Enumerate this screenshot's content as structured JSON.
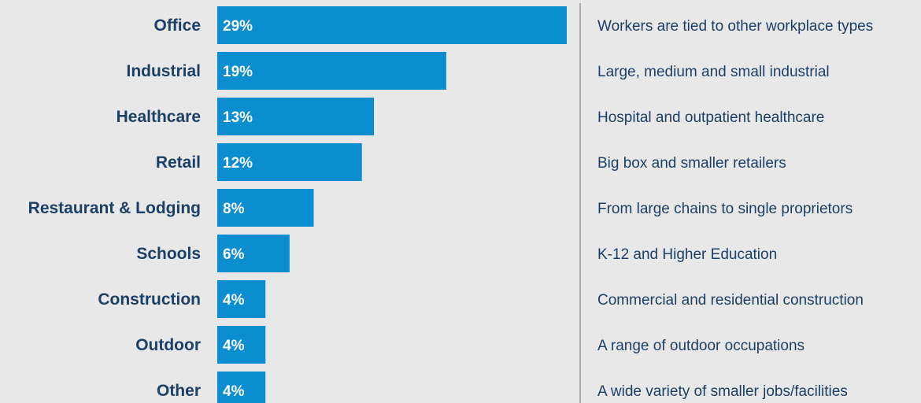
{
  "chart_data": {
    "type": "bar",
    "orientation": "horizontal",
    "categories": [
      "Office",
      "Industrial",
      "Healthcare",
      "Retail",
      "Restaurant & Lodging",
      "Schools",
      "Construction",
      "Outdoor",
      "Other"
    ],
    "values": [
      29,
      19,
      13,
      12,
      8,
      6,
      4,
      4,
      4
    ],
    "value_labels": [
      "29%",
      "19%",
      "13%",
      "12%",
      "8%",
      "6%",
      "4%",
      "4%",
      "4%"
    ],
    "descriptions": [
      "Workers are tied to other workplace types",
      "Large, medium and small industrial",
      "Hospital and outpatient healthcare",
      "Big box and smaller retailers",
      "From large chains to single proprietors",
      "K-12 and Higher Education",
      "Commercial and residential construction",
      "A range of outdoor occupations",
      "A wide variety of smaller jobs/facilities"
    ],
    "unit": "%",
    "grid": false,
    "legend": "none",
    "colors": {
      "bar": "#0a8ed0",
      "category_text": "#1c3f66",
      "description_text": "#1c3f66",
      "value_text": "#ffffff",
      "divider": "#9a9a9a",
      "background": "#e8e8e8"
    }
  }
}
